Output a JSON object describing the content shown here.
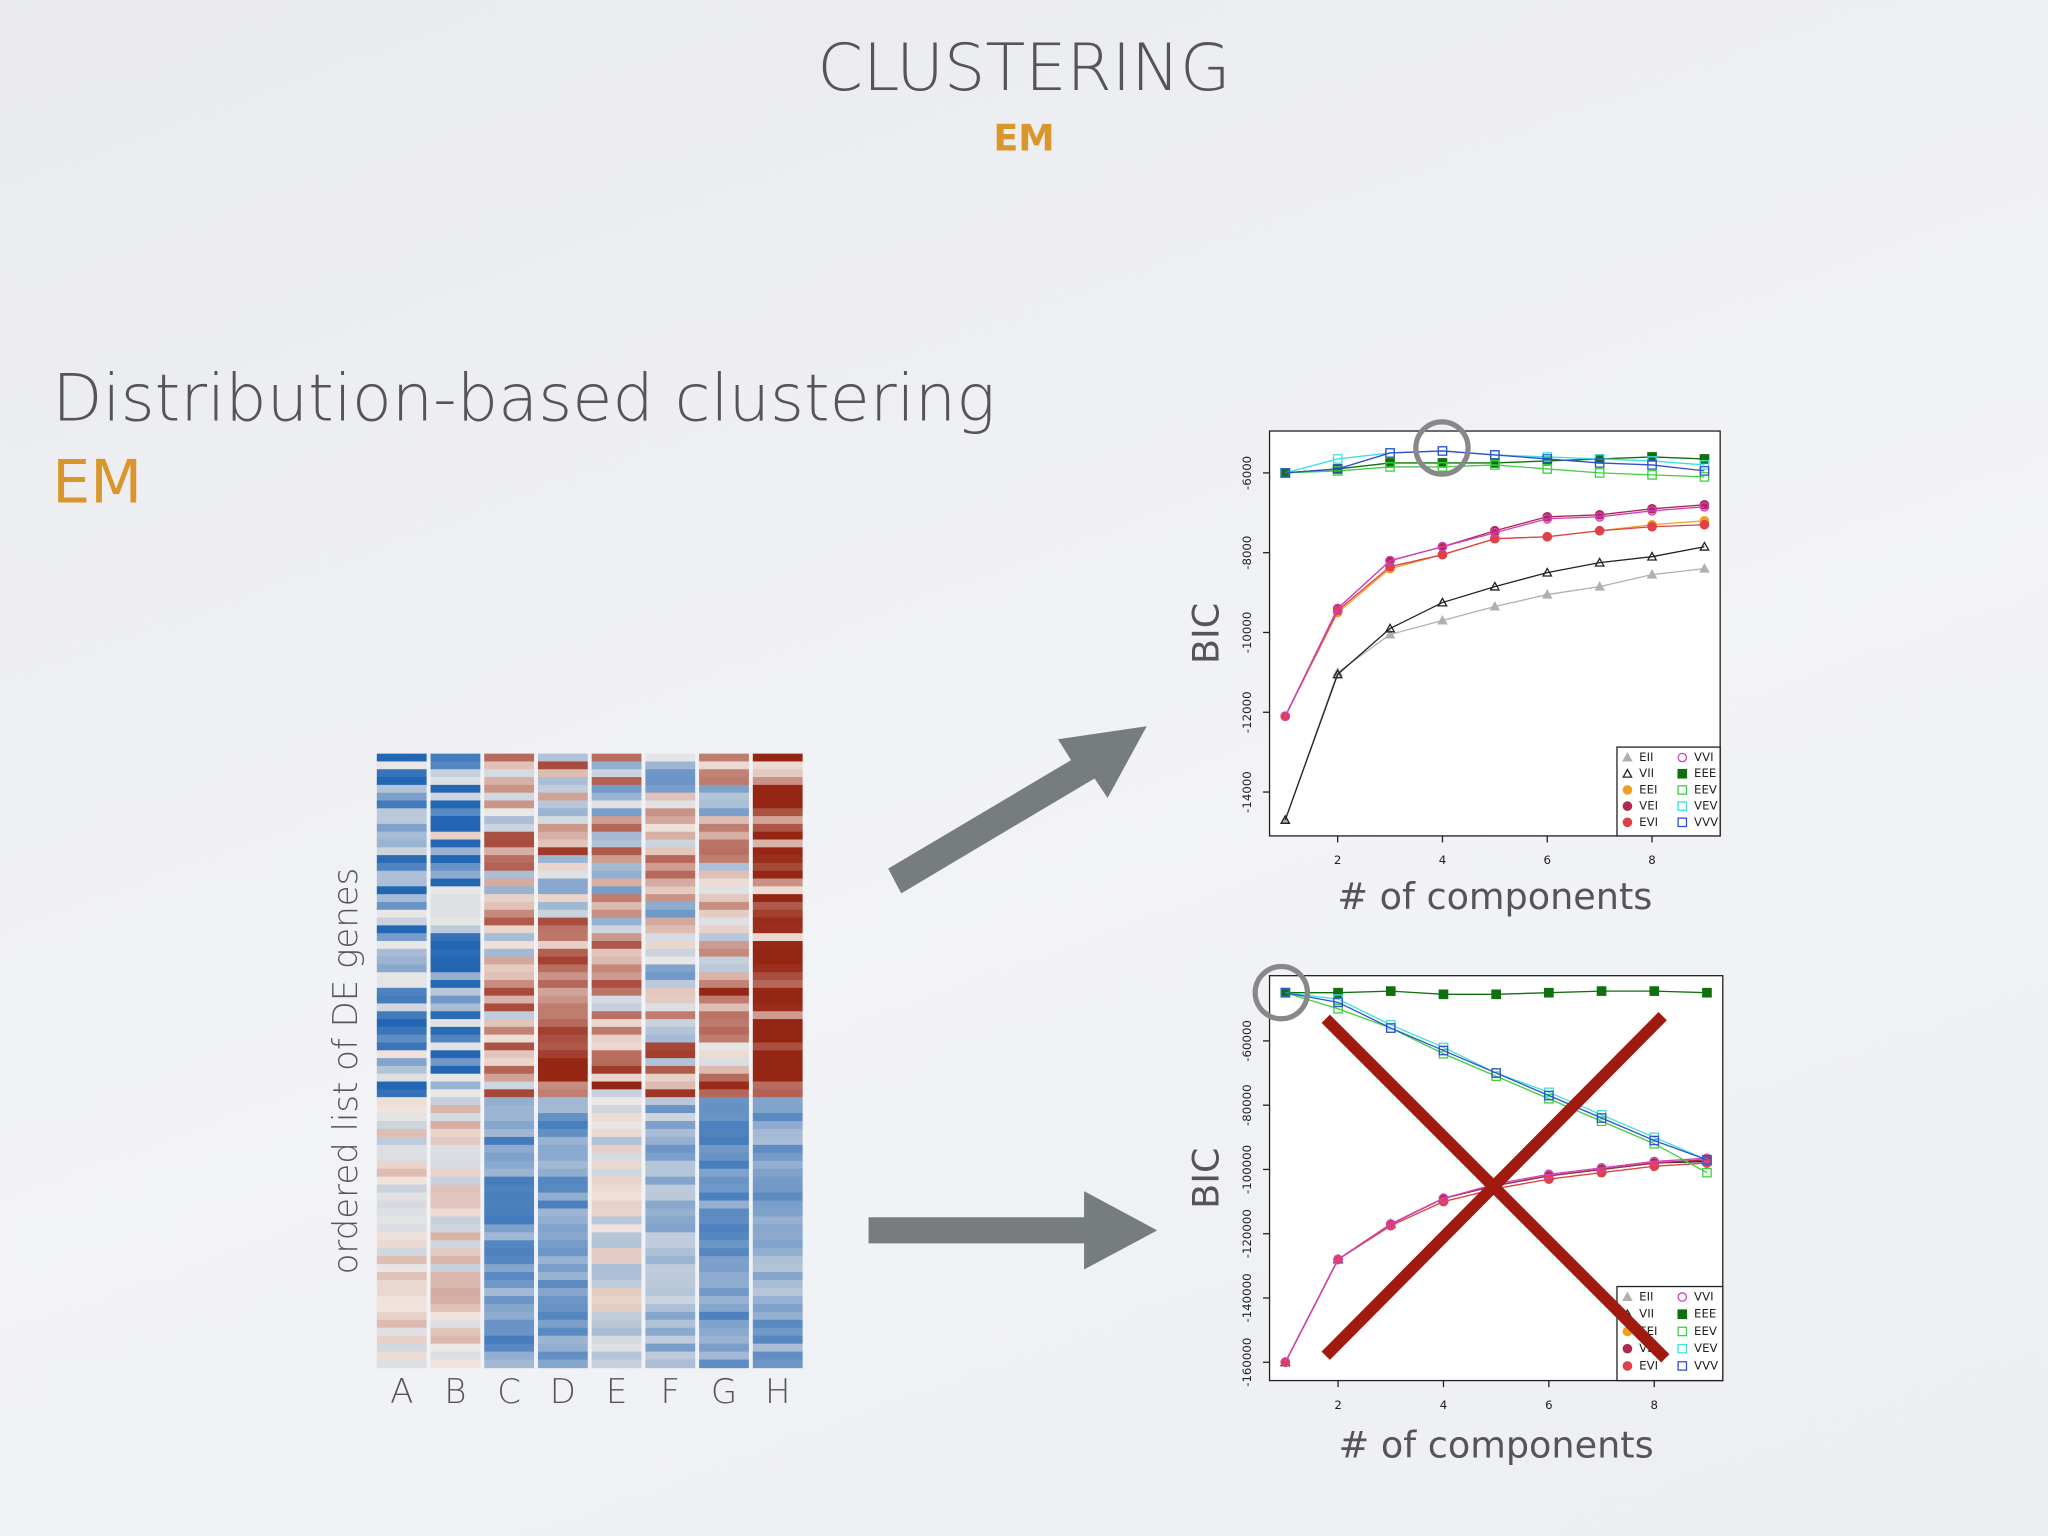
{
  "slide": {
    "title": "CLUSTERING",
    "subtitle": "EM",
    "heading": "Distribution-based clustering",
    "heading_sub": "EM"
  },
  "heatmap": {
    "y_label": "ordered list of DE genes",
    "columns": [
      "A",
      "B",
      "C",
      "D",
      "E",
      "F",
      "G",
      "H"
    ]
  },
  "chart_data": [
    {
      "type": "line",
      "x_label": "# of components",
      "y_label": "BIC",
      "legend": "lower right",
      "x": [
        1,
        2,
        3,
        4,
        5,
        6,
        7,
        8,
        9
      ],
      "xlim": [
        0.7,
        9.3
      ],
      "xticks": [
        2,
        4,
        6,
        8
      ],
      "ylim": [
        -15100,
        -4950
      ],
      "yticks": [
        -14000,
        -12000,
        -10000,
        -8000,
        -6000
      ],
      "series": [
        {
          "name": "EII",
          "color": "#b0b0b0",
          "values": [
            -14700,
            -11000,
            -10050,
            -9700,
            -9350,
            -9050,
            -8850,
            -8550,
            -8400
          ]
        },
        {
          "name": "VII",
          "color": "#222222",
          "values": [
            -14700,
            -11050,
            -9900,
            -9250,
            -8850,
            -8500,
            -8250,
            -8100,
            -7850
          ]
        },
        {
          "name": "EEI",
          "color": "#f0a020",
          "values": [
            -12100,
            -9500,
            -8400,
            -8050,
            -7650,
            -7600,
            -7450,
            -7300,
            -7200
          ]
        },
        {
          "name": "VEI",
          "color": "#b02a50",
          "values": [
            -12100,
            -9400,
            -8200,
            -7850,
            -7450,
            -7100,
            -7050,
            -6900,
            -6800
          ]
        },
        {
          "name": "EVI",
          "color": "#e04048",
          "values": [
            -12100,
            -9450,
            -8350,
            -8050,
            -7650,
            -7600,
            -7450,
            -7350,
            -7300
          ]
        },
        {
          "name": "VVI",
          "color": "#d040c0",
          "values": [
            -12100,
            -9400,
            -8200,
            -7850,
            -7500,
            -7150,
            -7100,
            -6950,
            -6850
          ]
        },
        {
          "name": "EEE",
          "color": "#107010",
          "values": [
            -6000,
            -5900,
            -5750,
            -5750,
            -5750,
            -5700,
            -5650,
            -5600,
            -5650
          ]
        },
        {
          "name": "EEV",
          "color": "#40d040",
          "values": [
            -6000,
            -5950,
            -5850,
            -5850,
            -5800,
            -5900,
            -6000,
            -6050,
            -6100
          ]
        },
        {
          "name": "VEV",
          "color": "#40e0e0",
          "values": [
            -6000,
            -5650,
            -5500,
            -5450,
            -5550,
            -5600,
            -5650,
            -5700,
            -5800
          ]
        },
        {
          "name": "VVV",
          "color": "#3050d0",
          "values": [
            -6000,
            -5900,
            -5500,
            -5450,
            -5550,
            -5650,
            -5750,
            -5800,
            -5950
          ]
        }
      ]
    },
    {
      "type": "line",
      "x_label": "# of components",
      "y_label": "BIC",
      "legend": "lower right",
      "x": [
        1,
        2,
        3,
        4,
        5,
        6,
        7,
        8,
        9
      ],
      "xlim": [
        0.7,
        9.3
      ],
      "xticks": [
        2,
        4,
        6,
        8
      ],
      "ylim": [
        -165700,
        -39700
      ],
      "yticks": [
        -160000,
        -140000,
        -120000,
        -100000,
        -80000,
        -60000
      ],
      "series": [
        {
          "name": "EII",
          "color": "#b0b0b0",
          "values": [
            -160000,
            -128000,
            -117000,
            -109000,
            -105000,
            -102000,
            -100000,
            -98000,
            -97000
          ]
        },
        {
          "name": "VII",
          "color": "#222222",
          "values": [
            -160000,
            -128000,
            -117000,
            -109000,
            -105000,
            -102000,
            -100000,
            -98000,
            -97500
          ]
        },
        {
          "name": "EEI",
          "color": "#f0a020",
          "values": [
            -160000,
            -128000,
            -117500,
            -110000,
            -106000,
            -103000,
            -101000,
            -99000,
            -98000
          ]
        },
        {
          "name": "VEI",
          "color": "#b02a50",
          "values": [
            -160000,
            -128000,
            -117000,
            -109000,
            -105000,
            -102000,
            -100000,
            -98000,
            -97000
          ]
        },
        {
          "name": "EVI",
          "color": "#e04048",
          "values": [
            -160000,
            -128000,
            -117500,
            -110000,
            -106000,
            -103000,
            -101000,
            -99000,
            -98000
          ]
        },
        {
          "name": "VVI",
          "color": "#d040c0",
          "values": [
            -160000,
            -128000,
            -117000,
            -109000,
            -104500,
            -101500,
            -99500,
            -97500,
            -96500
          ]
        },
        {
          "name": "EEE",
          "color": "#107010",
          "values": [
            -45000,
            -45000,
            -44500,
            -45500,
            -45500,
            -45000,
            -44500,
            -44500,
            -45000
          ]
        },
        {
          "name": "EEV",
          "color": "#40d040",
          "values": [
            -45000,
            -50000,
            -56000,
            -64000,
            -71000,
            -78000,
            -85000,
            -92000,
            -101000
          ]
        },
        {
          "name": "VEV",
          "color": "#40e0e0",
          "values": [
            -45000,
            -47000,
            -55000,
            -62000,
            -70000,
            -76000,
            -83000,
            -90000,
            -97000
          ]
        },
        {
          "name": "VVV",
          "color": "#3050d0",
          "values": [
            -45000,
            -48000,
            -56000,
            -63000,
            -70000,
            -77000,
            -84000,
            -91000,
            -97000
          ]
        }
      ]
    }
  ]
}
